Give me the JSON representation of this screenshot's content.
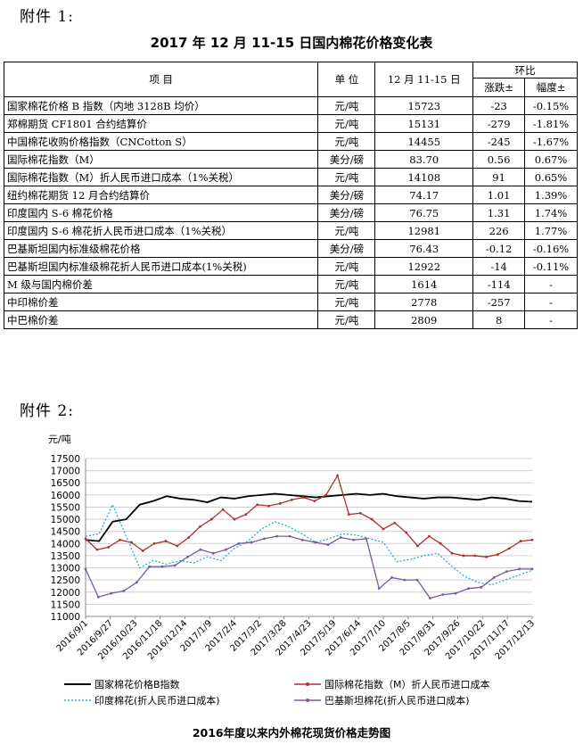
{
  "annex1": "附件 1:",
  "title": "2017 年 12 月 11-15 日国内棉花价格变化表",
  "table": {
    "headers": {
      "item": "项   目",
      "unit": "单 位",
      "period": "12 月 11-15 日",
      "compare": "环比",
      "change": "涨跌±",
      "pct": "幅度±"
    },
    "rows": [
      {
        "name": "国家棉花价格 B 指数（内地 3128B 均价）",
        "unit": "元/吨",
        "value": "15723",
        "change": "-23",
        "pct": "-0.15%"
      },
      {
        "name": "郑棉期货 CF1801 合约结算价",
        "unit": "元/吨",
        "value": "15131",
        "change": "-279",
        "pct": "-1.81%"
      },
      {
        "name": "中国棉花收购价格指数（CNCotton S）",
        "unit": "元/吨",
        "value": "14455",
        "change": "-245",
        "pct": "-1.67%"
      },
      {
        "name": "国际棉花指数（M）",
        "unit": "美分/磅",
        "value": "83.70",
        "change": "0.56",
        "pct": "0.67%"
      },
      {
        "name": "国际棉花指数（M）折人民币进口成本（1%关税）",
        "unit": "元/吨",
        "value": "14108",
        "change": "91",
        "pct": "0.65%"
      },
      {
        "name": "纽约棉花期货 12 月合约结算价",
        "unit": "美分/磅",
        "value": "74.17",
        "change": "1.01",
        "pct": "1.39%"
      },
      {
        "name": "印度国内 S-6 棉花价格",
        "unit": "美分/磅",
        "value": "76.75",
        "change": "1.31",
        "pct": "1.74%"
      },
      {
        "name": "印度国内 S-6 棉花折人民币进口成本（1%关税）",
        "unit": "元/吨",
        "value": "12981",
        "change": "226",
        "pct": "1.77%"
      },
      {
        "name": "巴基斯坦国内标准级棉花价格",
        "unit": "美分/磅",
        "value": "76.43",
        "change": "-0.12",
        "pct": "-0.16%"
      },
      {
        "name": "巴基斯坦国内标准级棉花折人民币进口成本(1%关税)",
        "unit": "元/吨",
        "value": "12922",
        "change": "-14",
        "pct": "-0.11%"
      },
      {
        "name": "M 级与国内棉价差",
        "unit": "元/吨",
        "value": "1614",
        "change": "-114",
        "pct": "-"
      },
      {
        "name": "中印棉价差",
        "unit": "元/吨",
        "value": "2778",
        "change": "-257",
        "pct": "-"
      },
      {
        "name": "中巴棉价差",
        "unit": "元/吨",
        "value": "2809",
        "change": "8",
        "pct": "-"
      }
    ]
  },
  "annex2": "附件 2:",
  "chart_data": {
    "type": "line",
    "title": "2016年度以来内外棉花现货价格走势图",
    "ylabel": "元/吨",
    "ylim": [
      11000,
      17500
    ],
    "yticks": [
      11000,
      11500,
      12000,
      12500,
      13000,
      13500,
      14000,
      14500,
      15000,
      15500,
      16000,
      16500,
      17000,
      17500
    ],
    "x_tick_labels": [
      "2016/9/1",
      "2016/9/27",
      "2016/10/23",
      "2016/11/18",
      "2016/12/14",
      "2017/1/9",
      "2017/2/4",
      "2017/3/2",
      "2017/3/28",
      "2017/4/23",
      "2017/5/19",
      "2017/6/14",
      "2017/7/10",
      "2017/8/5",
      "2017/8/31",
      "2017/9/26",
      "2017/10/22",
      "2017/11/17",
      "2017/12/13"
    ],
    "grid": "horizontal",
    "legend_position": "bottom",
    "series": [
      {
        "name": "国家棉花价格B指数",
        "color": "#000000",
        "style": "solid",
        "values": [
          14150,
          14100,
          14900,
          15000,
          15600,
          15750,
          15950,
          15850,
          15800,
          15700,
          15900,
          15850,
          15950,
          16000,
          16050,
          16000,
          15950,
          15900,
          15950,
          16000,
          16050,
          16000,
          16050,
          15950,
          15900,
          15850,
          15900,
          15900,
          15850,
          15800,
          15900,
          15850,
          15750,
          15720
        ]
      },
      {
        "name": "国际棉花指数（M）折人民币进口成本",
        "color": "#a83232",
        "style": "solid-marker",
        "values": [
          14200,
          13750,
          13850,
          14150,
          14050,
          13700,
          14000,
          14100,
          13900,
          14250,
          14700,
          15000,
          15400,
          15000,
          15200,
          15600,
          15550,
          15650,
          15800,
          15900,
          15750,
          16000,
          16800,
          15200,
          15250,
          15000,
          14600,
          14850,
          14450,
          13900,
          14300,
          14000,
          13600,
          13500,
          13500,
          13450,
          13550,
          13800,
          14100,
          14150
        ]
      },
      {
        "name": "印度棉花(折人民币进口成本)",
        "color": "#2aa7e0",
        "style": "dotted",
        "values": [
          14300,
          14400,
          15600,
          14300,
          13000,
          13300,
          13150,
          13300,
          13200,
          13450,
          13300,
          13800,
          14100,
          14600,
          14900,
          14700,
          14400,
          14050,
          14200,
          14400,
          14350,
          14200,
          14050,
          13250,
          13350,
          13500,
          13600,
          13100,
          12650,
          12400,
          12300,
          12500,
          12700,
          12900
        ]
      },
      {
        "name": "巴基斯坦棉花(折人民币进口成本)",
        "color": "#7a5a9a",
        "style": "solid-marker",
        "values": [
          12950,
          11800,
          11950,
          12050,
          12400,
          13050,
          13050,
          13100,
          13450,
          13750,
          13600,
          13750,
          14000,
          14050,
          14200,
          14300,
          14300,
          14150,
          14050,
          13950,
          14250,
          14150,
          14200,
          12150,
          12600,
          12500,
          12500,
          11750,
          11900,
          11950,
          12150,
          12200,
          12600,
          12850,
          12950,
          12950
        ]
      }
    ]
  }
}
